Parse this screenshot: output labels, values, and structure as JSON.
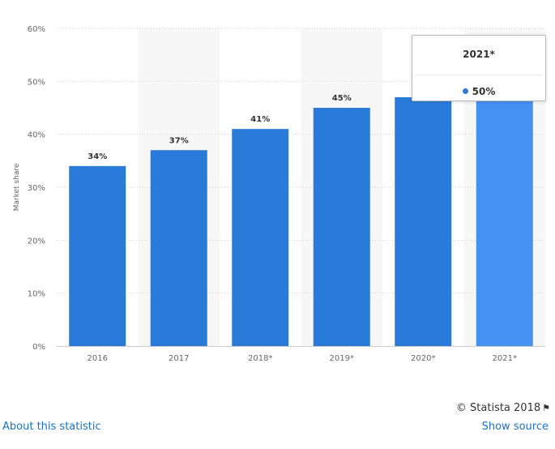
{
  "chart_data": {
    "type": "bar",
    "categories": [
      "2016",
      "2017",
      "2018*",
      "2019*",
      "2020*",
      "2021*"
    ],
    "values": [
      34,
      37,
      41,
      45,
      47,
      50
    ],
    "value_labels": [
      "34%",
      "37%",
      "41%",
      "45%",
      "",
      ""
    ],
    "title": "",
    "xlabel": "",
    "ylabel": "Market share",
    "ylim": [
      0,
      60
    ],
    "y_ticks": [
      0,
      10,
      20,
      30,
      40,
      50,
      60
    ],
    "y_tick_labels": [
      "0%",
      "10%",
      "20%",
      "30%",
      "40%",
      "50%",
      "60%"
    ],
    "grid": "horizontal dotted",
    "highlighted_category": "2021*",
    "colors": {
      "bar": "#2a7ad9",
      "bar_highlight": "#4591f2",
      "band": "#f7f7f7",
      "grid": "#cfcfcf",
      "axis_text": "#666666",
      "label_text": "#333333"
    }
  },
  "tooltip": {
    "title": "2021*",
    "value": "50%",
    "dot_color": "#2a7ad9"
  },
  "credits": {
    "text": "© Statista 2018",
    "icon": "flag-icon"
  },
  "links": {
    "about": "About this statistic",
    "source": "Show source"
  }
}
